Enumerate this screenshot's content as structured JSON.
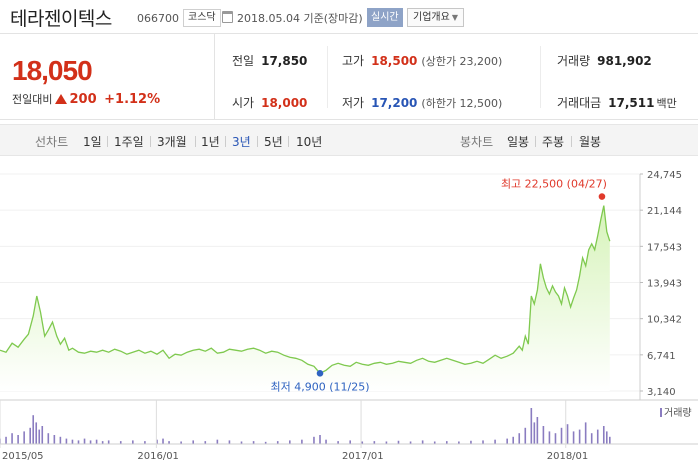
{
  "header": {
    "name": "테라젠이텍스",
    "code": "066700",
    "market": "코스닥",
    "date": "2018.05.04",
    "basis": "기준(장마감)",
    "realtime_label": "실시간",
    "company_label": "기업개요"
  },
  "quote": {
    "price": "18,050",
    "change_label": "전일대비",
    "change": "200",
    "change_pct": "+1.12%",
    "prev_close_label": "전일",
    "prev_close": "17,850",
    "open_label": "시가",
    "open": "18,000",
    "high_label": "고가",
    "high": "18,500",
    "upper_limit": "(상한가 23,200)",
    "low_label": "저가",
    "low": "17,200",
    "lower_limit": "(하한가 12,500)",
    "volume_label": "거래량",
    "volume": "981,902",
    "amount_label": "거래대금",
    "amount": "17,511",
    "amount_unit": "백만"
  },
  "periods": {
    "line_label": "선차트",
    "line_items": [
      "1일",
      "1주일",
      "3개월",
      "1년",
      "3년",
      "5년",
      "10년"
    ],
    "active": "3년",
    "candle_label": "봉차트",
    "candle_items": [
      "일봉",
      "주봉",
      "월봉"
    ]
  },
  "colors": {
    "line": "#7fc94f",
    "fill_top": "#d6f3b9",
    "fill_bottom": "#ffffff",
    "high_marker": "#e0392b",
    "low_marker": "#2f63c1",
    "volume_bar": "#8a7cc0"
  },
  "chart_data": {
    "type": "area",
    "ylim": [
      3140,
      24745
    ],
    "y_ticks": [
      "24,745",
      "21,144",
      "17,543",
      "13,943",
      "10,342",
      "6,741",
      "3,140"
    ],
    "x_ticks": [
      {
        "label": "2015/05",
        "t": 0.0
      },
      {
        "label": "2016/01",
        "t": 0.259
      },
      {
        "label": "2017/01",
        "t": 0.598
      },
      {
        "label": "2018/01",
        "t": 0.937
      }
    ],
    "high_annotation": {
      "label": "최고",
      "value": "22,500",
      "date": "(04/27)",
      "y": 22500,
      "t": 0.997
    },
    "low_annotation": {
      "label": "최저",
      "value": "4,900",
      "date": "(11/25)",
      "y": 4900,
      "t": 0.53
    },
    "volume_label": "거래량",
    "x_range": [
      0,
      1.06
    ],
    "series": [
      {
        "points": [
          [
            0.0,
            7200
          ],
          [
            0.01,
            7000
          ],
          [
            0.02,
            7900
          ],
          [
            0.03,
            7500
          ],
          [
            0.04,
            8300
          ],
          [
            0.047,
            8800
          ],
          [
            0.055,
            10600
          ],
          [
            0.061,
            12600
          ],
          [
            0.067,
            11000
          ],
          [
            0.074,
            8600
          ],
          [
            0.08,
            9200
          ],
          [
            0.087,
            10000
          ],
          [
            0.094,
            8600
          ],
          [
            0.1,
            7800
          ],
          [
            0.107,
            8400
          ],
          [
            0.114,
            7200
          ],
          [
            0.12,
            7400
          ],
          [
            0.13,
            7000
          ],
          [
            0.14,
            6900
          ],
          [
            0.15,
            7100
          ],
          [
            0.16,
            7000
          ],
          [
            0.17,
            7200
          ],
          [
            0.18,
            7000
          ],
          [
            0.19,
            7300
          ],
          [
            0.2,
            7100
          ],
          [
            0.21,
            6800
          ],
          [
            0.22,
            7000
          ],
          [
            0.23,
            7200
          ],
          [
            0.24,
            6900
          ],
          [
            0.25,
            7100
          ],
          [
            0.26,
            6800
          ],
          [
            0.27,
            7200
          ],
          [
            0.28,
            6400
          ],
          [
            0.29,
            6800
          ],
          [
            0.3,
            6700
          ],
          [
            0.31,
            7000
          ],
          [
            0.32,
            7200
          ],
          [
            0.33,
            7300
          ],
          [
            0.34,
            7100
          ],
          [
            0.35,
            7400
          ],
          [
            0.36,
            6900
          ],
          [
            0.37,
            7000
          ],
          [
            0.38,
            7300
          ],
          [
            0.39,
            7200
          ],
          [
            0.4,
            7100
          ],
          [
            0.41,
            7300
          ],
          [
            0.42,
            7400
          ],
          [
            0.43,
            7200
          ],
          [
            0.44,
            6900
          ],
          [
            0.45,
            7100
          ],
          [
            0.46,
            7000
          ],
          [
            0.47,
            6700
          ],
          [
            0.48,
            6500
          ],
          [
            0.49,
            6400
          ],
          [
            0.5,
            6200
          ],
          [
            0.51,
            5800
          ],
          [
            0.52,
            5600
          ],
          [
            0.53,
            4900
          ],
          [
            0.54,
            5200
          ],
          [
            0.55,
            5700
          ],
          [
            0.56,
            5900
          ],
          [
            0.57,
            5700
          ],
          [
            0.58,
            5600
          ],
          [
            0.59,
            6000
          ],
          [
            0.6,
            5800
          ],
          [
            0.61,
            5700
          ],
          [
            0.62,
            5900
          ],
          [
            0.63,
            6000
          ],
          [
            0.64,
            5800
          ],
          [
            0.65,
            5900
          ],
          [
            0.66,
            6100
          ],
          [
            0.67,
            6000
          ],
          [
            0.68,
            5900
          ],
          [
            0.69,
            6200
          ],
          [
            0.7,
            6400
          ],
          [
            0.71,
            6100
          ],
          [
            0.72,
            6000
          ],
          [
            0.73,
            6200
          ],
          [
            0.74,
            6400
          ],
          [
            0.75,
            6200
          ],
          [
            0.76,
            6000
          ],
          [
            0.77,
            5800
          ],
          [
            0.78,
            5900
          ],
          [
            0.79,
            6100
          ],
          [
            0.8,
            5900
          ],
          [
            0.81,
            6300
          ],
          [
            0.82,
            6700
          ],
          [
            0.83,
            6400
          ],
          [
            0.84,
            6600
          ],
          [
            0.85,
            6900
          ],
          [
            0.86,
            7600
          ],
          [
            0.865,
            7200
          ],
          [
            0.87,
            8600
          ],
          [
            0.875,
            7800
          ],
          [
            0.88,
            12600
          ],
          [
            0.885,
            11800
          ],
          [
            0.89,
            13200
          ],
          [
            0.895,
            15800
          ],
          [
            0.9,
            14400
          ],
          [
            0.905,
            13400
          ],
          [
            0.91,
            12800
          ],
          [
            0.915,
            13600
          ],
          [
            0.92,
            13000
          ],
          [
            0.925,
            12600
          ],
          [
            0.93,
            11800
          ],
          [
            0.935,
            13400
          ],
          [
            0.94,
            12600
          ],
          [
            0.945,
            11500
          ],
          [
            0.95,
            12400
          ],
          [
            0.955,
            13200
          ],
          [
            0.96,
            14600
          ],
          [
            0.965,
            16400
          ],
          [
            0.97,
            15600
          ],
          [
            0.975,
            17200
          ],
          [
            0.98,
            17800
          ],
          [
            0.985,
            17200
          ],
          [
            0.99,
            18600
          ],
          [
            0.995,
            20200
          ],
          [
            1.0,
            21600
          ],
          [
            1.005,
            19000
          ],
          [
            1.01,
            18050
          ]
        ]
      }
    ],
    "volume": [
      [
        0.0,
        0.15
      ],
      [
        0.01,
        0.2
      ],
      [
        0.02,
        0.3
      ],
      [
        0.03,
        0.25
      ],
      [
        0.04,
        0.35
      ],
      [
        0.05,
        0.45
      ],
      [
        0.055,
        0.8
      ],
      [
        0.06,
        0.6
      ],
      [
        0.065,
        0.4
      ],
      [
        0.07,
        0.5
      ],
      [
        0.08,
        0.3
      ],
      [
        0.09,
        0.25
      ],
      [
        0.1,
        0.2
      ],
      [
        0.11,
        0.15
      ],
      [
        0.12,
        0.12
      ],
      [
        0.13,
        0.1
      ],
      [
        0.14,
        0.15
      ],
      [
        0.15,
        0.1
      ],
      [
        0.16,
        0.12
      ],
      [
        0.17,
        0.08
      ],
      [
        0.18,
        0.1
      ],
      [
        0.2,
        0.08
      ],
      [
        0.22,
        0.1
      ],
      [
        0.24,
        0.08
      ],
      [
        0.26,
        0.12
      ],
      [
        0.27,
        0.15
      ],
      [
        0.28,
        0.08
      ],
      [
        0.3,
        0.07
      ],
      [
        0.32,
        0.1
      ],
      [
        0.34,
        0.08
      ],
      [
        0.36,
        0.12
      ],
      [
        0.38,
        0.1
      ],
      [
        0.4,
        0.07
      ],
      [
        0.42,
        0.08
      ],
      [
        0.44,
        0.06
      ],
      [
        0.46,
        0.08
      ],
      [
        0.48,
        0.1
      ],
      [
        0.5,
        0.12
      ],
      [
        0.52,
        0.2
      ],
      [
        0.53,
        0.25
      ],
      [
        0.54,
        0.12
      ],
      [
        0.56,
        0.08
      ],
      [
        0.58,
        0.1
      ],
      [
        0.6,
        0.07
      ],
      [
        0.62,
        0.08
      ],
      [
        0.64,
        0.07
      ],
      [
        0.66,
        0.09
      ],
      [
        0.68,
        0.07
      ],
      [
        0.7,
        0.1
      ],
      [
        0.72,
        0.07
      ],
      [
        0.74,
        0.08
      ],
      [
        0.76,
        0.07
      ],
      [
        0.78,
        0.09
      ],
      [
        0.8,
        0.1
      ],
      [
        0.82,
        0.12
      ],
      [
        0.84,
        0.15
      ],
      [
        0.85,
        0.2
      ],
      [
        0.86,
        0.3
      ],
      [
        0.87,
        0.45
      ],
      [
        0.88,
        1.0
      ],
      [
        0.885,
        0.6
      ],
      [
        0.89,
        0.75
      ],
      [
        0.9,
        0.5
      ],
      [
        0.91,
        0.35
      ],
      [
        0.92,
        0.3
      ],
      [
        0.93,
        0.45
      ],
      [
        0.94,
        0.55
      ],
      [
        0.95,
        0.35
      ],
      [
        0.96,
        0.4
      ],
      [
        0.97,
        0.6
      ],
      [
        0.98,
        0.3
      ],
      [
        0.99,
        0.4
      ],
      [
        1.0,
        0.5
      ],
      [
        1.005,
        0.35
      ],
      [
        1.01,
        0.2
      ]
    ]
  }
}
